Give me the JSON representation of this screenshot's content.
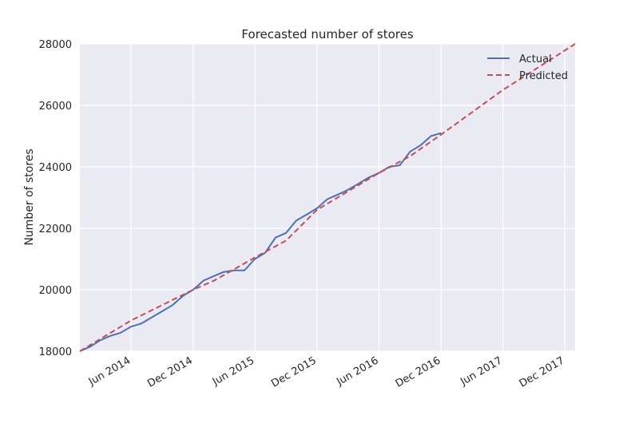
{
  "chart_data": {
    "type": "line",
    "title": "Forecasted number of stores",
    "xlabel": "",
    "ylabel": "Number of stores",
    "ylim": [
      18000,
      28000
    ],
    "xlim": [
      "2014-01-01",
      "2017-12-31"
    ],
    "y_ticks": [
      18000,
      20000,
      22000,
      24000,
      26000,
      28000
    ],
    "x_ticks": [
      {
        "date": "2014-06-01",
        "label": "Jun 2014"
      },
      {
        "date": "2014-12-01",
        "label": "Dec 2014"
      },
      {
        "date": "2015-06-01",
        "label": "Jun 2015"
      },
      {
        "date": "2015-12-01",
        "label": "Dec 2015"
      },
      {
        "date": "2016-06-01",
        "label": "Jun 2016"
      },
      {
        "date": "2016-12-01",
        "label": "Dec 2016"
      },
      {
        "date": "2017-06-01",
        "label": "Jun 2017"
      },
      {
        "date": "2017-12-01",
        "label": "Dec 2017"
      }
    ],
    "grid": true,
    "legend_position": "top-right",
    "series": [
      {
        "name": "Actual",
        "color": "#4C72B0",
        "style": "solid",
        "points": [
          [
            "2014-01-01",
            18000
          ],
          [
            "2014-02-01",
            18150
          ],
          [
            "2014-03-01",
            18350
          ],
          [
            "2014-04-01",
            18500
          ],
          [
            "2014-05-01",
            18600
          ],
          [
            "2014-06-01",
            18800
          ],
          [
            "2014-07-01",
            18900
          ],
          [
            "2014-08-01",
            19100
          ],
          [
            "2014-09-01",
            19300
          ],
          [
            "2014-10-01",
            19500
          ],
          [
            "2014-11-01",
            19800
          ],
          [
            "2014-12-01",
            20000
          ],
          [
            "2015-01-01",
            20300
          ],
          [
            "2015-02-01",
            20450
          ],
          [
            "2015-03-01",
            20580
          ],
          [
            "2015-04-01",
            20630
          ],
          [
            "2015-05-01",
            20630
          ],
          [
            "2015-06-01",
            21000
          ],
          [
            "2015-07-01",
            21200
          ],
          [
            "2015-08-01",
            21700
          ],
          [
            "2015-09-01",
            21850
          ],
          [
            "2015-10-01",
            22250
          ],
          [
            "2015-11-01",
            22450
          ],
          [
            "2015-12-01",
            22650
          ],
          [
            "2016-01-01",
            22950
          ],
          [
            "2016-02-01",
            23100
          ],
          [
            "2016-03-01",
            23250
          ],
          [
            "2016-04-01",
            23450
          ],
          [
            "2016-05-01",
            23650
          ],
          [
            "2016-06-01",
            23800
          ],
          [
            "2016-07-01",
            24000
          ],
          [
            "2016-08-01",
            24050
          ],
          [
            "2016-09-01",
            24500
          ],
          [
            "2016-10-01",
            24700
          ],
          [
            "2016-11-01",
            25000
          ],
          [
            "2016-12-01",
            25100
          ]
        ]
      },
      {
        "name": "Predicted",
        "color": "#C44E52",
        "style": "dashed",
        "points": [
          [
            "2014-01-01",
            18000
          ],
          [
            "2014-06-01",
            19000
          ],
          [
            "2014-12-01",
            20000
          ],
          [
            "2015-02-01",
            20300
          ],
          [
            "2015-06-01",
            21050
          ],
          [
            "2015-09-01",
            21600
          ],
          [
            "2015-12-01",
            22600
          ],
          [
            "2016-06-01",
            23800
          ],
          [
            "2016-09-01",
            24350
          ],
          [
            "2016-12-01",
            25050
          ],
          [
            "2017-06-01",
            26500
          ],
          [
            "2017-12-31",
            28000
          ]
        ]
      }
    ]
  }
}
